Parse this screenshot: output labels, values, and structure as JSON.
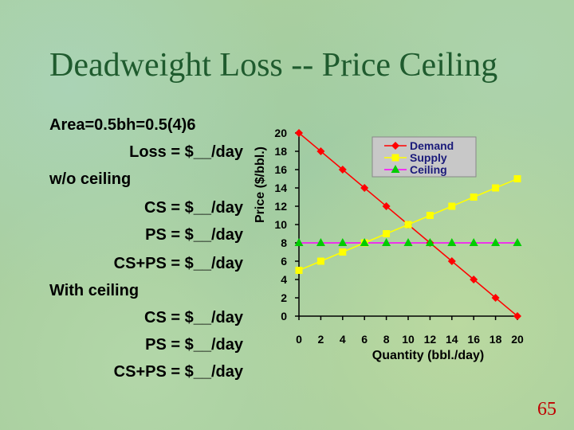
{
  "slide": {
    "title": "Deadweight Loss -- Price Ceiling",
    "page_number": "65"
  },
  "text_lines": [
    "Area=0.5bh=0.5(4)6",
    "Loss = $__/day",
    "w/o ceiling",
    "CS = $__/day",
    "PS = $__/day",
    "CS+PS = $__/day",
    "With ceiling",
    "CS = $__/day",
    "PS = $__/day",
    "CS+PS = $__/day"
  ],
  "chart_data": {
    "type": "line",
    "title": "",
    "xlabel": "Quantity (bbl./day)",
    "ylabel": "Price ($/bbl.)",
    "xlim": [
      0,
      20
    ],
    "ylim": [
      0,
      20
    ],
    "xticks": [
      0,
      2,
      4,
      6,
      8,
      10,
      12,
      14,
      16,
      18,
      20
    ],
    "yticks": [
      0,
      2,
      4,
      6,
      8,
      10,
      12,
      14,
      16,
      18,
      20
    ],
    "grid": false,
    "legend_position": "top-right",
    "series": [
      {
        "name": "Demand",
        "color": "#ff0000",
        "marker": "diamond",
        "x": [
          0,
          2,
          4,
          6,
          8,
          10,
          12,
          14,
          16,
          18,
          20
        ],
        "y": [
          20,
          18,
          16,
          14,
          12,
          10,
          8,
          6,
          4,
          2,
          0
        ]
      },
      {
        "name": "Supply",
        "color": "#ffff00",
        "marker": "square",
        "x": [
          0,
          2,
          4,
          6,
          8,
          10,
          12,
          14,
          16,
          18,
          20
        ],
        "y": [
          5,
          6,
          7,
          8,
          9,
          10,
          11,
          12,
          13,
          14,
          15
        ]
      },
      {
        "name": "Ceiling",
        "color": "#ff00ff",
        "marker_color": "#00cc00",
        "marker": "triangle",
        "x": [
          0,
          2,
          4,
          6,
          8,
          10,
          12,
          14,
          16,
          18,
          20
        ],
        "y": [
          8,
          8,
          8,
          8,
          8,
          8,
          8,
          8,
          8,
          8,
          8
        ]
      }
    ]
  }
}
